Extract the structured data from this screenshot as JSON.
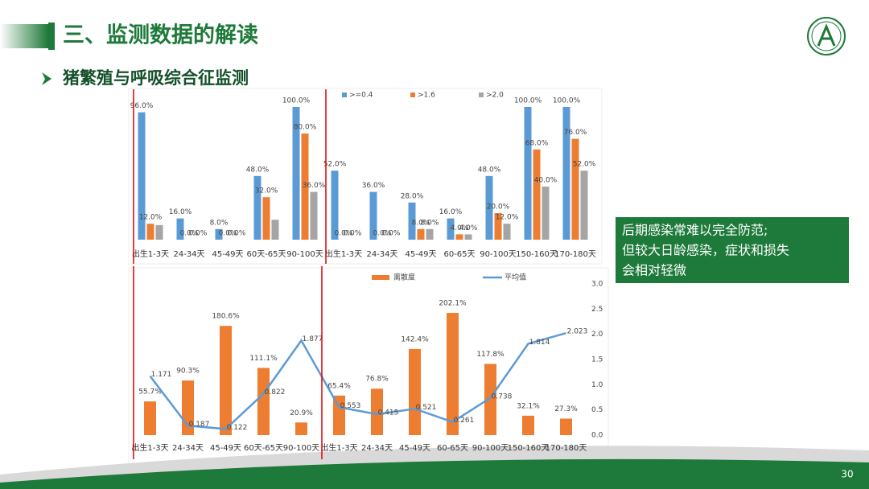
{
  "slide": {
    "title": "三、监测数据的解读",
    "subtitle": "猪繁殖与呼吸综合征监测",
    "note": [
      "后期感染常难以完全防范;",
      "但较大日龄感染，症状和损失",
      "会相对轻微"
    ],
    "page": "30"
  },
  "chart_data": [
    {
      "type": "bar",
      "categories": [
        "出生1-3天",
        "24-34天",
        "45-49天",
        "60天-65天",
        "90-100天",
        "出生1-3天",
        "24-34天",
        "45-49天",
        "60-65天",
        "90-100天",
        "150-160天",
        "170-180天"
      ],
      "ylim": [
        0,
        100
      ],
      "series": [
        {
          "name": ">=0.4",
          "color": "#5b9bd5",
          "values": [
            96,
            16,
            8,
            48,
            100,
            52,
            36,
            28,
            16,
            48,
            100,
            100
          ],
          "value_labels": [
            "96.0%",
            "16.0%",
            "8.0%",
            "48.0%",
            "100.0%",
            "52.0%",
            "36.0%",
            "28.0%",
            "16.0%",
            "48.0%",
            "100.0%",
            "100.0%"
          ]
        },
        {
          "name": ">1.6",
          "color": "#ed7d31",
          "values": [
            12,
            0,
            0,
            32,
            80,
            0,
            0,
            8,
            4,
            20,
            68,
            76
          ],
          "value_labels": [
            "12.0%",
            "0.0%",
            "0.0%",
            "32.0%",
            "80.0%",
            "0.0%",
            "0.0%",
            "8.0%",
            "4.0%",
            "20.0%",
            "68.0%",
            "76.0%"
          ]
        },
        {
          "name": ">2.0",
          "color": "#a5a5a5",
          "values": [
            11,
            0,
            0,
            15,
            36,
            0,
            0,
            8,
            4,
            12,
            40,
            52
          ],
          "value_labels": [
            null,
            "0.0%",
            "0.0%",
            null,
            "36.0%",
            "0.0%",
            "0.0%",
            "8.0%",
            "4.0%",
            "12.0%",
            "40.0%",
            "52.0%"
          ]
        }
      ]
    },
    {
      "type": "combo",
      "categories": [
        "出生1-3天",
        "24-34天",
        "45-49天",
        "60天-65天",
        "90-100天",
        "出生1-3天",
        "24-34天",
        "45-49天",
        "60-65天",
        "90-100天",
        "150-160天",
        "170-180天"
      ],
      "ylim": [
        0,
        250
      ],
      "y2lim": [
        0,
        3
      ],
      "y2ticks": [
        {
          "value": 0,
          "label": "0.0"
        },
        {
          "value": 0.5,
          "label": "0.5"
        },
        {
          "value": 1,
          "label": "1.0"
        },
        {
          "value": 1.5,
          "label": "1.5"
        },
        {
          "value": 2,
          "label": "2.0"
        },
        {
          "value": 2.5,
          "label": "2.5"
        },
        {
          "value": 3,
          "label": "3.0"
        }
      ],
      "series": [
        {
          "name": "离散度",
          "color": "#ed7d31",
          "values": [
            55.7,
            90.3,
            180.6,
            111.1,
            20.9,
            65.4,
            76.8,
            142.4,
            202.1,
            117.8,
            32.1,
            27.3
          ],
          "value_labels": [
            "55.7%",
            "90.3%",
            "180.6%",
            "111.1%",
            "20.9%",
            "65.4%",
            "76.8%",
            "142.4%",
            "202.1%",
            "117.8%",
            "32.1%",
            "27.3%"
          ]
        },
        {
          "name": "平均值",
          "color": "#5b9bd5",
          "axis": "y2",
          "values": [
            1.171,
            0.187,
            0.122,
            0.822,
            1.877,
            0.553,
            0.415,
            0.521,
            0.261,
            0.738,
            1.814,
            2.023
          ]
        }
      ]
    }
  ]
}
